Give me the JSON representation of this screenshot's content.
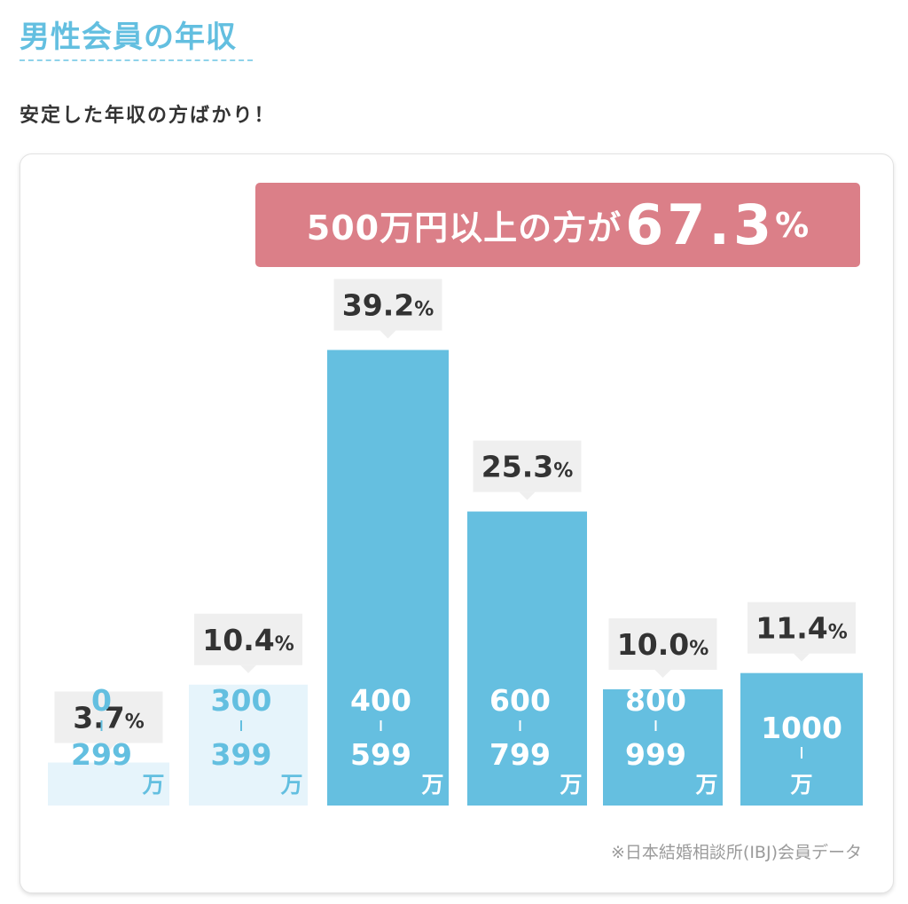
{
  "page": {
    "heading": "男性会員の年収",
    "subtitle": "安定した年収の方ばかり！"
  },
  "banner": {
    "text": "500万円以上の方が",
    "value": "67.3",
    "unit": "%"
  },
  "source_note": "※日本結婚相談所(IBJ)会員データ",
  "colors": {
    "accent": "#63bfe0",
    "bar_highlight": "#65bfe0",
    "bar_muted": "#e6f4fb",
    "banner": "#db7f88",
    "label_bg": "#efefef"
  },
  "chart_data": {
    "type": "bar",
    "categories": [
      {
        "from": "0",
        "to": "299",
        "unit": "万"
      },
      {
        "from": "300",
        "to": "399",
        "unit": "万"
      },
      {
        "from": "400",
        "to": "599",
        "unit": "万"
      },
      {
        "from": "600",
        "to": "799",
        "unit": "万"
      },
      {
        "from": "800",
        "to": "999",
        "unit": "万"
      },
      {
        "from": "1000",
        "to": "",
        "unit": "万"
      }
    ],
    "values": [
      3.7,
      10.4,
      39.2,
      25.3,
      10.0,
      11.4
    ],
    "value_labels": [
      "3.7",
      "10.4",
      "39.2",
      "25.3",
      "10.0",
      "11.4"
    ],
    "value_unit": "%",
    "highlighted": [
      false,
      false,
      true,
      true,
      true,
      true
    ],
    "grid": false,
    "legend": "none"
  }
}
